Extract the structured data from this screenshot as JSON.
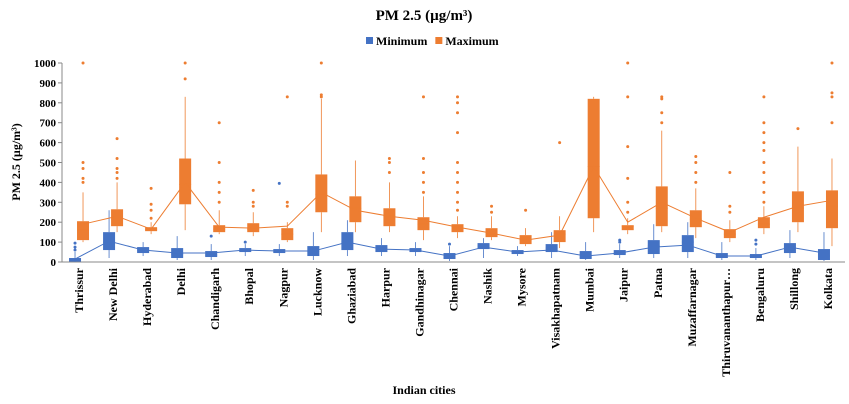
{
  "chart_data": {
    "type": "box",
    "title": "PM 2.5 (µg/m³)",
    "x_label": "Indian cities",
    "y_label": "PM 2.5 (µg/m³)",
    "categories": [
      "Thrissur",
      "New Delhi",
      "Hyderabad",
      "Delhi",
      "Chandigarh",
      "Bhopal",
      "Nagpur",
      "Lucknow",
      "Ghaziabad",
      "Harpur",
      "Gandhinagar",
      "Chennai",
      "Nashik",
      "Mysore",
      "Visakhapatnam",
      "Mumbai",
      "Jaipur",
      "Patna",
      "Muzaffarnagar",
      "Thiruvananthapur…",
      "Bengaluru",
      "Shillong",
      "Kolkata"
    ],
    "ylim": [
      0,
      1000
    ],
    "yticks": [
      0,
      100,
      200,
      300,
      400,
      500,
      600,
      700,
      800,
      900,
      1000
    ],
    "legend": "top",
    "series": [
      {
        "name": "Minimum",
        "color": "#4472c4",
        "whisker_low": [
          0,
          20,
          30,
          10,
          10,
          30,
          30,
          10,
          30,
          30,
          30,
          5,
          20,
          30,
          20,
          10,
          20,
          20,
          20,
          10,
          10,
          20,
          5
        ],
        "q1": [
          2,
          60,
          45,
          20,
          25,
          50,
          45,
          30,
          60,
          50,
          50,
          15,
          65,
          40,
          50,
          15,
          35,
          40,
          50,
          20,
          20,
          45,
          10
        ],
        "median": [
          8,
          100,
          60,
          40,
          35,
          60,
          55,
          55,
          100,
          70,
          60,
          30,
          80,
          50,
          70,
          25,
          45,
          80,
          100,
          30,
          25,
          70,
          30
        ],
        "q3": [
          20,
          150,
          75,
          70,
          55,
          70,
          65,
          80,
          150,
          85,
          70,
          45,
          95,
          60,
          90,
          55,
          60,
          110,
          135,
          45,
          40,
          95,
          65
        ],
        "whisker_high": [
          50,
          260,
          100,
          130,
          90,
          90,
          90,
          150,
          210,
          120,
          100,
          80,
          120,
          80,
          150,
          100,
          90,
          190,
          200,
          100,
          70,
          160,
          150
        ],
        "mean": [
          15,
          105,
          60,
          45,
          45,
          60,
          55,
          55,
          100,
          65,
          60,
          30,
          75,
          50,
          60,
          30,
          45,
          75,
          85,
          30,
          30,
          75,
          45
        ],
        "outliers": [
          [
            60,
            75,
            95
          ],
          [],
          [],
          [],
          [
            130
          ],
          [
            100
          ],
          [
            395
          ],
          [],
          [],
          [],
          [],
          [
            90
          ],
          [],
          [],
          [],
          [],
          [
            100,
            110
          ],
          [],
          [],
          [],
          [
            90,
            110
          ],
          [],
          []
        ]
      },
      {
        "name": "Maximum",
        "color": "#ed7d31",
        "whisker_low": [
          100,
          150,
          140,
          160,
          140,
          130,
          100,
          150,
          150,
          150,
          110,
          120,
          110,
          80,
          70,
          150,
          140,
          150,
          120,
          100,
          140,
          150,
          80
        ],
        "q1": [
          110,
          180,
          155,
          290,
          150,
          150,
          110,
          250,
          200,
          180,
          160,
          150,
          125,
          90,
          100,
          220,
          160,
          180,
          175,
          120,
          170,
          200,
          170
        ],
        "median": [
          160,
          215,
          165,
          390,
          165,
          165,
          140,
          340,
          270,
          230,
          190,
          170,
          140,
          110,
          140,
          480,
          180,
          270,
          215,
          140,
          190,
          270,
          280
        ],
        "q3": [
          205,
          265,
          175,
          520,
          185,
          195,
          170,
          440,
          330,
          270,
          225,
          190,
          170,
          135,
          160,
          820,
          185,
          380,
          260,
          165,
          225,
          355,
          360
        ],
        "whisker_high": [
          350,
          400,
          200,
          830,
          260,
          250,
          200,
          820,
          510,
          400,
          330,
          230,
          230,
          170,
          230,
          830,
          220,
          660,
          370,
          210,
          280,
          580,
          520
        ],
        "mean": [
          190,
          230,
          165,
          400,
          175,
          170,
          180,
          350,
          260,
          230,
          210,
          175,
          145,
          110,
          135,
          480,
          200,
          300,
          220,
          150,
          225,
          280,
          310
        ],
        "outliers": [
          [
            400,
            420,
            470,
            500,
            1000
          ],
          [
            420,
            450,
            470,
            520,
            620
          ],
          [
            220,
            260,
            290,
            370
          ],
          [
            920,
            1000
          ],
          [
            300,
            350,
            400,
            500,
            700
          ],
          [
            280,
            300,
            360
          ],
          [
            280,
            300,
            830
          ],
          [
            830,
            840,
            1000
          ],
          [],
          [
            450,
            500,
            520
          ],
          [
            350,
            400,
            450,
            520,
            830
          ],
          [
            260,
            300,
            350,
            400,
            450,
            500,
            650,
            750,
            800,
            830
          ],
          [
            250,
            280
          ],
          [
            260
          ],
          [
            600
          ],
          [],
          [
            250,
            300,
            420,
            580,
            830,
            1000
          ],
          [
            700,
            750,
            820,
            830
          ],
          [
            400,
            450,
            500,
            530
          ],
          [
            250,
            280,
            450
          ],
          [
            300,
            350,
            400,
            450,
            500,
            560,
            600,
            650,
            700,
            830
          ],
          [
            670
          ],
          [
            700,
            830,
            850,
            1000
          ]
        ]
      }
    ]
  }
}
